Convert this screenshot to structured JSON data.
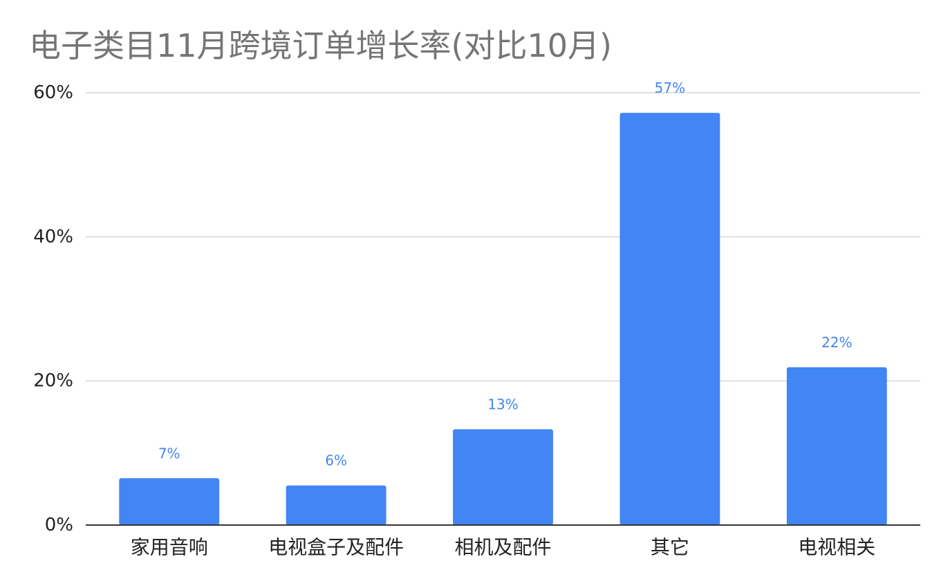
{
  "chart_data": {
    "type": "bar",
    "title": "电子类目11月跨境订单增长率(对比10月)",
    "categories": [
      "家用音响",
      "电视盒子及配件",
      "相机及配件",
      "其它",
      "电视相关"
    ],
    "values": [
      6.5,
      5.5,
      13.3,
      57.2,
      21.9
    ],
    "data_labels": [
      "7%",
      "6%",
      "13%",
      "57%",
      "22%"
    ],
    "ylim": [
      0,
      60
    ],
    "y_ticks": [
      0,
      20,
      40,
      60
    ],
    "y_tick_labels": [
      "0%",
      "20%",
      "40%",
      "60%"
    ],
    "xlabel": "",
    "ylabel": "",
    "grid": true,
    "legend": "none",
    "colors": {
      "bar": "#4285f4",
      "data_label": "#4285f4",
      "title": "#757575",
      "axis_text": "#222222",
      "grid": "#cccccc",
      "baseline": "#333333"
    }
  }
}
